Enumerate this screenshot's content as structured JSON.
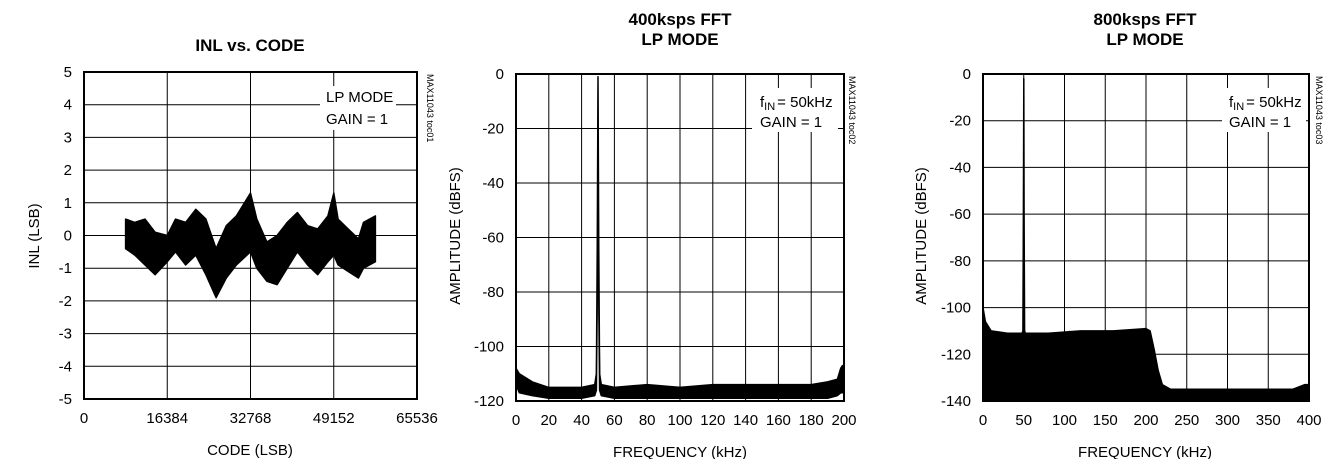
{
  "chart_data": [
    {
      "type": "line",
      "title": "INL vs. CODE",
      "xlabel": "CODE (LSB)",
      "ylabel": "INL (LSB)",
      "xlim": [
        0,
        65536
      ],
      "ylim": [
        -5,
        5
      ],
      "xticks": [
        "0",
        "16384",
        "32768",
        "49152",
        "65536"
      ],
      "yticks": [
        "5",
        "4",
        "3",
        "2",
        "1",
        "0",
        "-1",
        "-2",
        "-3",
        "-4",
        "-5"
      ],
      "annotation_lines": [
        "LP MODE",
        "GAIN = 1"
      ],
      "side_label": "MAX11043 toc01",
      "series": [
        {
          "x": [
            8192,
            10000,
            12000,
            14000,
            16384,
            18000,
            20000,
            22000,
            24000,
            26000,
            28000,
            30000,
            32768,
            34000,
            36000,
            38000,
            40000,
            42000,
            44000,
            46000,
            48000,
            49152,
            50000,
            52000,
            54000,
            55000,
            57344
          ],
          "upper": [
            0.5,
            0.4,
            0.5,
            0.1,
            0.0,
            0.5,
            0.4,
            0.8,
            0.5,
            -0.4,
            0.3,
            0.6,
            1.3,
            0.5,
            -0.2,
            0.0,
            0.4,
            0.7,
            0.3,
            0.2,
            0.6,
            1.3,
            0.5,
            0.2,
            -0.1,
            0.4,
            0.6
          ],
          "lower": [
            -0.4,
            -0.6,
            -0.9,
            -1.2,
            -0.8,
            -0.5,
            -0.9,
            -0.6,
            -1.2,
            -1.9,
            -1.3,
            -0.9,
            -0.5,
            -1.0,
            -1.4,
            -1.5,
            -1.0,
            -0.5,
            -0.9,
            -1.2,
            -0.8,
            -0.6,
            -0.9,
            -1.1,
            -1.3,
            -1.0,
            -0.8
          ]
        }
      ]
    },
    {
      "type": "line",
      "title": "400ksps FFT",
      "subtitle": "LP MODE",
      "xlabel": "FREQUENCY (kHz)",
      "ylabel": "AMPLITUDE (dBFS)",
      "xlim": [
        0,
        200
      ],
      "ylim": [
        -120,
        0
      ],
      "xticks": [
        "0",
        "20",
        "40",
        "60",
        "80",
        "100",
        "120",
        "140",
        "160",
        "180",
        "200"
      ],
      "yticks": [
        "0",
        "-20",
        "-40",
        "-60",
        "-80",
        "-100",
        "-120"
      ],
      "annotation_lines": [
        "= 50kHz",
        "GAIN = 1"
      ],
      "annotation_symbol": "f",
      "annotation_subscript": "IN",
      "side_label": "MAX11043 toc02",
      "series": [
        {
          "x": [
            0,
            2,
            10,
            20,
            30,
            40,
            48,
            49,
            49.6,
            50,
            50.4,
            51,
            52,
            60,
            80,
            100,
            120,
            140,
            160,
            180,
            190,
            196,
            198,
            199,
            200
          ],
          "upper": [
            -108,
            -110,
            -113,
            -115,
            -115,
            -115,
            -114,
            -110,
            -60,
            -1,
            -60,
            -110,
            -114,
            -115,
            -114,
            -115,
            -114,
            -114,
            -114,
            -114,
            -113,
            -112,
            -108,
            -107,
            -110
          ],
          "lower": [
            -114,
            -117,
            -118,
            -119,
            -119,
            -119,
            -118,
            -116,
            -80,
            -5,
            -80,
            -116,
            -118,
            -119,
            -119,
            -119,
            -119,
            -119,
            -119,
            -119,
            -119,
            -118,
            -117,
            -117,
            -117
          ]
        }
      ]
    },
    {
      "type": "line",
      "title": "800ksps FFT",
      "subtitle": "LP MODE",
      "xlabel": "FREQUENCY (kHz)",
      "ylabel": "AMPLITUDE (dBFS)",
      "xlim": [
        0,
        400
      ],
      "ylim": [
        -140,
        0
      ],
      "xticks": [
        "0",
        "50",
        "100",
        "150",
        "200",
        "250",
        "300",
        "350",
        "400"
      ],
      "yticks": [
        "0",
        "-20",
        "-40",
        "-60",
        "-80",
        "-100",
        "-120",
        "-140"
      ],
      "annotation_lines": [
        "= 50kHz",
        "GAIN = 1"
      ],
      "annotation_symbol": "f",
      "annotation_subscript": "IN",
      "side_label": "MAX11043 toc03",
      "series": [
        {
          "x": [
            0,
            3,
            10,
            30,
            48,
            49,
            49.6,
            50,
            50.4,
            51,
            52,
            80,
            120,
            160,
            200,
            205,
            210,
            215,
            220,
            230,
            260,
            300,
            340,
            380,
            395,
            400
          ],
          "upper": [
            -100,
            -106,
            -110,
            -111,
            -111,
            -110,
            -60,
            -2,
            -60,
            -110,
            -111,
            -111,
            -110,
            -110,
            -109,
            -110,
            -118,
            -127,
            -133,
            -135,
            -135,
            -135,
            -135,
            -135,
            -133,
            -133
          ],
          "lower": [
            -140,
            -140,
            -140,
            -140,
            -140,
            -139,
            -110,
            -10,
            -110,
            -139,
            -140,
            -140,
            -140,
            -140,
            -140,
            -140,
            -140,
            -140,
            -140,
            -140,
            -140,
            -140,
            -140,
            -140,
            -140,
            -139
          ]
        }
      ]
    }
  ]
}
